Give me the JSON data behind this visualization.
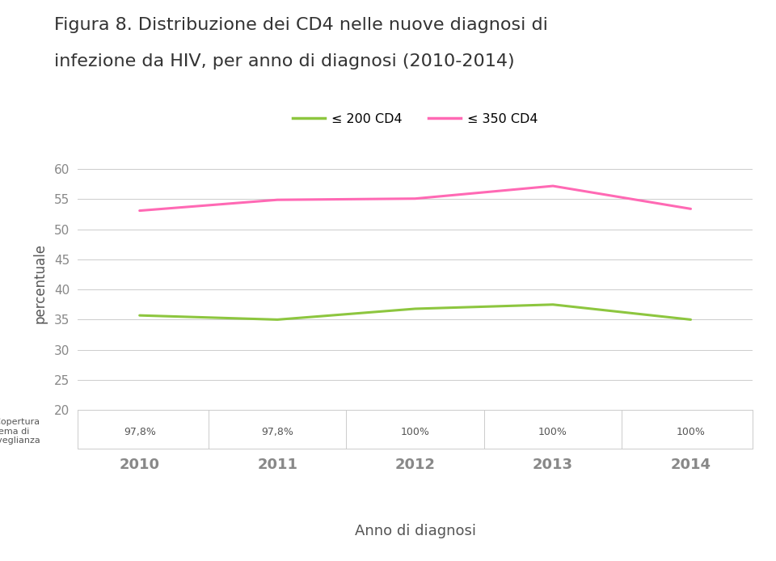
{
  "title_line1": "Figura 8. Distribuzione dei CD4 nelle nuove diagnosi di",
  "title_line2": "infezione da HIV, per anno di diagnosi (2010-2014)",
  "years": [
    2010,
    2011,
    2012,
    2013,
    2014
  ],
  "cd200_values": [
    35.7,
    35.0,
    36.8,
    37.5,
    35.0
  ],
  "cd350_values": [
    53.1,
    54.9,
    55.1,
    57.2,
    53.4
  ],
  "cd200_color": "#8dc63f",
  "cd350_color": "#ff69b4",
  "legend_cd200": "≤ 200 CD4",
  "legend_cd350": "≤ 350 CD4",
  "ylabel": "percentuale",
  "xlabel": "Anno di diagnosi",
  "ylim": [
    20,
    62
  ],
  "yticks": [
    20,
    25,
    30,
    35,
    40,
    45,
    50,
    55,
    60
  ],
  "grid_color": "#cccccc",
  "background_color": "#ffffff",
  "table_row_label": "% Copertura\nsistema di\nsorveglianza",
  "table_copertura": [
    "97,8%",
    "97,8%",
    "100%",
    "100%",
    "100%"
  ],
  "tick_color": "#888888",
  "text_color": "#555555"
}
